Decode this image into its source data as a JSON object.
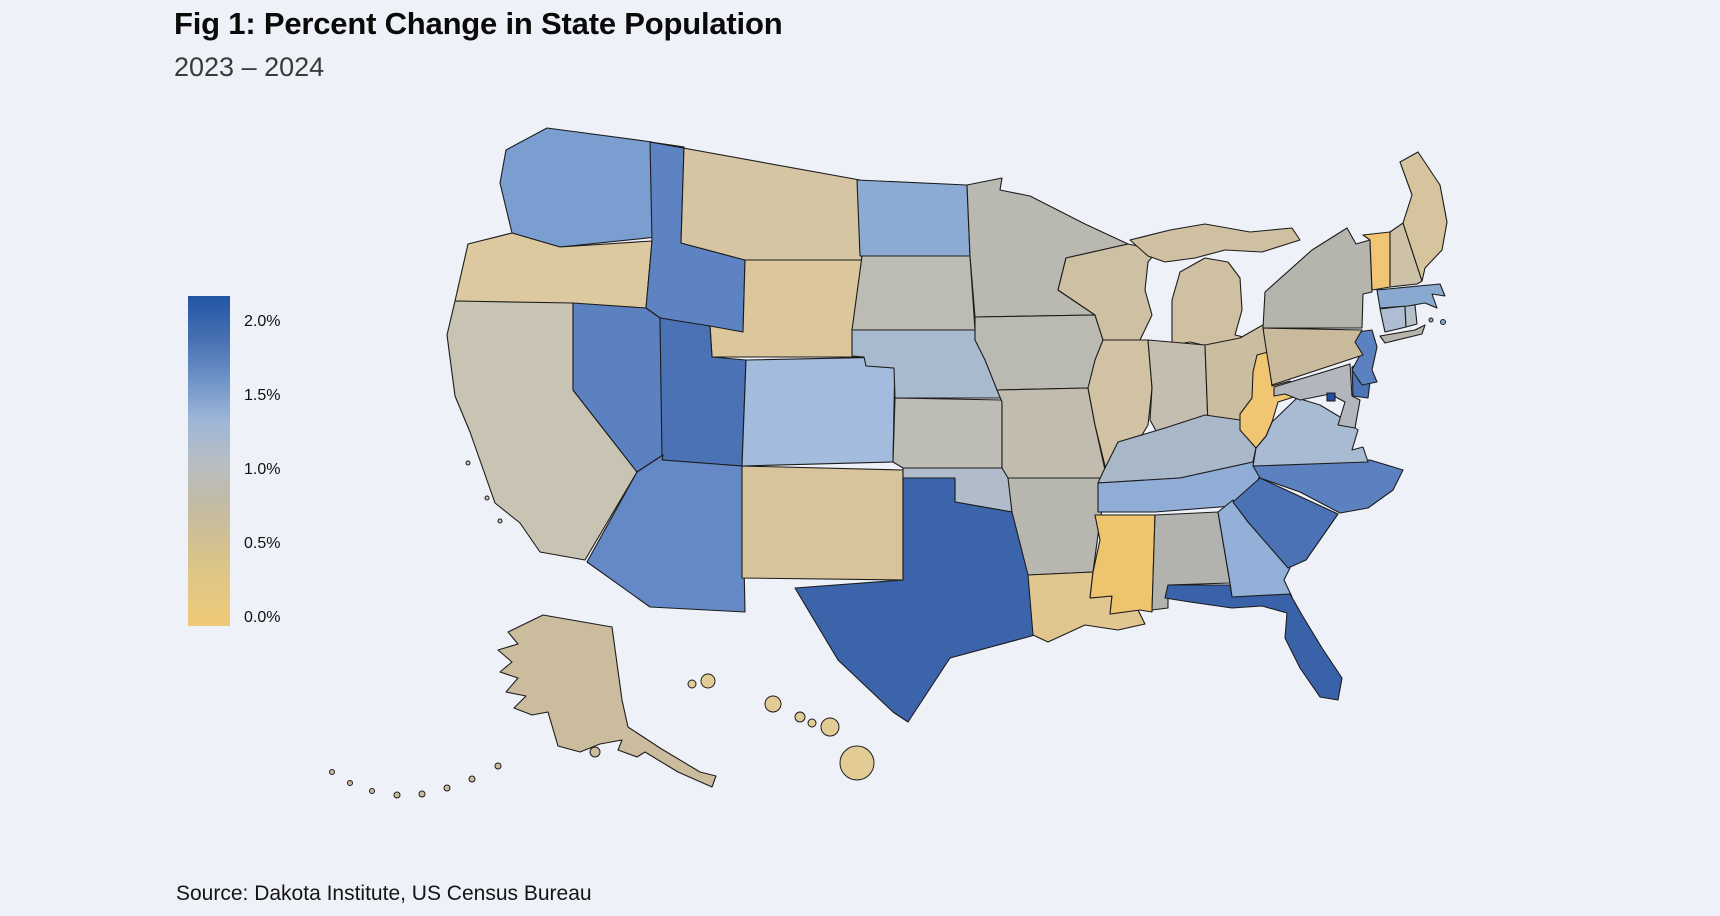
{
  "figure": {
    "title": "Fig 1: Percent Change in State Population",
    "subtitle": "2023 – 2024",
    "source": "Source: Dakota Institute, US Census Bureau"
  },
  "colors": {
    "background": "#eff1f9",
    "state_border": "#1c1c1c"
  },
  "legend": {
    "ticks": [
      "2.0%",
      "1.5%",
      "1.0%",
      "0.5%",
      "0.0%"
    ],
    "gradient": [
      "#2155a4",
      "#466fb2",
      "#6d92c7",
      "#9db6d8",
      "#b6bec4",
      "#c2bba6",
      "#d2c190",
      "#e2c783",
      "#efc977"
    ]
  },
  "chart_data": {
    "type": "choropleth",
    "region": "United States",
    "metric": "Percent change in state population, 2023–2024",
    "unit": "%",
    "value_range": [
      0.0,
      2.0
    ],
    "legend_position": "left",
    "states": [
      {
        "abbr": "WA",
        "name": "Washington",
        "value": 1.25,
        "fill": "#7b9ed1"
      },
      {
        "abbr": "OR",
        "name": "Oregon",
        "value": 0.35,
        "fill": "#ddc99f"
      },
      {
        "abbr": "CA",
        "name": "California",
        "value": 0.6,
        "fill": "#c9c3b3"
      },
      {
        "abbr": "ID",
        "name": "Idaho",
        "value": 1.5,
        "fill": "#5e83c2"
      },
      {
        "abbr": "MT",
        "name": "Montana",
        "value": 0.45,
        "fill": "#d5c5a2"
      },
      {
        "abbr": "WY",
        "name": "Wyoming",
        "value": 0.35,
        "fill": "#dcc79c"
      },
      {
        "abbr": "NV",
        "name": "Nevada",
        "value": 1.5,
        "fill": "#5b81c0"
      },
      {
        "abbr": "UT",
        "name": "Utah",
        "value": 1.65,
        "fill": "#4a72b5"
      },
      {
        "abbr": "CO",
        "name": "Colorado",
        "value": 1.0,
        "fill": "#a3bbdc"
      },
      {
        "abbr": "AZ",
        "name": "Arizona",
        "value": 1.4,
        "fill": "#6489c6"
      },
      {
        "abbr": "NM",
        "name": "New Mexico",
        "value": 0.4,
        "fill": "#d8c49c"
      },
      {
        "abbr": "ND",
        "name": "North Dakota",
        "value": 1.15,
        "fill": "#8cabd3"
      },
      {
        "abbr": "SD",
        "name": "South Dakota",
        "value": 0.7,
        "fill": "#bcbcb5"
      },
      {
        "abbr": "NE",
        "name": "Nebraska",
        "value": 0.9,
        "fill": "#a9bacf"
      },
      {
        "abbr": "KS",
        "name": "Kansas",
        "value": 0.7,
        "fill": "#bdbdb6"
      },
      {
        "abbr": "OK",
        "name": "Oklahoma",
        "value": 0.8,
        "fill": "#b1bccb"
      },
      {
        "abbr": "TX",
        "name": "Texas",
        "value": 1.8,
        "fill": "#3c64aa"
      },
      {
        "abbr": "MN",
        "name": "Minnesota",
        "value": 0.7,
        "fill": "#b9b9b2"
      },
      {
        "abbr": "IA",
        "name": "Iowa",
        "value": 0.7,
        "fill": "#babab2"
      },
      {
        "abbr": "MO",
        "name": "Missouri",
        "value": 0.6,
        "fill": "#c1bcae"
      },
      {
        "abbr": "AR",
        "name": "Arkansas",
        "value": 0.7,
        "fill": "#b7b7b0"
      },
      {
        "abbr": "LA",
        "name": "Louisiana",
        "value": 0.2,
        "fill": "#e1c78f"
      },
      {
        "abbr": "WI",
        "name": "Wisconsin",
        "value": 0.5,
        "fill": "#cec0a2"
      },
      {
        "abbr": "IL",
        "name": "Illinois",
        "value": 0.45,
        "fill": "#d1c2a4"
      },
      {
        "abbr": "MI",
        "name": "Michigan",
        "value": 0.5,
        "fill": "#cfc0a1"
      },
      {
        "abbr": "IN",
        "name": "Indiana",
        "value": 0.6,
        "fill": "#c5beb0"
      },
      {
        "abbr": "OH",
        "name": "Ohio",
        "value": 0.5,
        "fill": "#cbbd9f"
      },
      {
        "abbr": "KY",
        "name": "Kentucky",
        "value": 0.8,
        "fill": "#a9b8c9"
      },
      {
        "abbr": "TN",
        "name": "Tennessee",
        "value": 1.15,
        "fill": "#8fadd6"
      },
      {
        "abbr": "MS",
        "name": "Mississippi",
        "value": 0.05,
        "fill": "#eec46e"
      },
      {
        "abbr": "AL",
        "name": "Alabama",
        "value": 0.7,
        "fill": "#b2b2ae"
      },
      {
        "abbr": "GA",
        "name": "Georgia",
        "value": 1.1,
        "fill": "#92b0d8"
      },
      {
        "abbr": "FL",
        "name": "Florida",
        "value": 1.9,
        "fill": "#3a62a8"
      },
      {
        "abbr": "SC",
        "name": "South Carolina",
        "value": 1.65,
        "fill": "#4a72b5"
      },
      {
        "abbr": "NC",
        "name": "North Carolina",
        "value": 1.5,
        "fill": "#5c81c0"
      },
      {
        "abbr": "VA",
        "name": "Virginia",
        "value": 0.9,
        "fill": "#a9bbd3"
      },
      {
        "abbr": "WV",
        "name": "West Virginia",
        "value": 0.05,
        "fill": "#f0c673"
      },
      {
        "abbr": "MD",
        "name": "Maryland",
        "value": 0.75,
        "fill": "#b3b7bd"
      },
      {
        "abbr": "DE",
        "name": "Delaware",
        "value": 1.6,
        "fill": "#4b74b6"
      },
      {
        "abbr": "NJ",
        "name": "New Jersey",
        "value": 1.5,
        "fill": "#5c81c0"
      },
      {
        "abbr": "PA",
        "name": "Pennsylvania",
        "value": 0.5,
        "fill": "#c9ba9c"
      },
      {
        "abbr": "NY",
        "name": "New York",
        "value": 0.7,
        "fill": "#b5b5ae"
      },
      {
        "abbr": "CT",
        "name": "Connecticut",
        "value": 0.85,
        "fill": "#aebdd1"
      },
      {
        "abbr": "RI",
        "name": "Rhode Island",
        "value": 0.8,
        "fill": "#b6c0c9"
      },
      {
        "abbr": "MA",
        "name": "Massachusetts",
        "value": 1.2,
        "fill": "#8aa9d1"
      },
      {
        "abbr": "VT",
        "name": "Vermont",
        "value": 0.05,
        "fill": "#f0c675"
      },
      {
        "abbr": "NH",
        "name": "New Hampshire",
        "value": 0.5,
        "fill": "#cdc2a8"
      },
      {
        "abbr": "ME",
        "name": "Maine",
        "value": 0.45,
        "fill": "#d5c49e"
      },
      {
        "abbr": "AK",
        "name": "Alaska",
        "value": 0.5,
        "fill": "#cbbc9e"
      },
      {
        "abbr": "HI",
        "name": "Hawaii",
        "value": 0.3,
        "fill": "#e3cb96"
      },
      {
        "abbr": "DC",
        "name": "District of Columbia",
        "value": 2.1,
        "fill": "#1f4e9c"
      }
    ]
  }
}
